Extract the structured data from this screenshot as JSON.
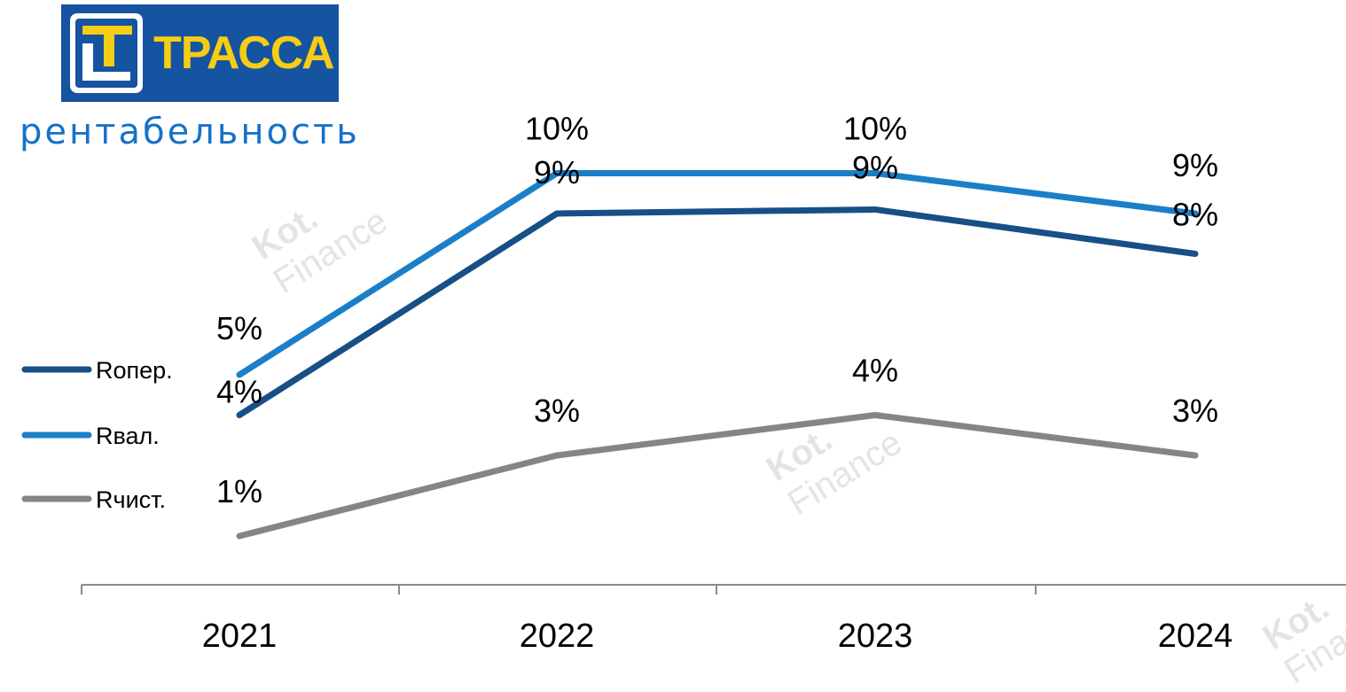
{
  "logo": {
    "brand_text": "ТРАССА",
    "bg_color": "#1653a0",
    "accent_color": "#f5cd14"
  },
  "subtitle": "рентабельность",
  "watermark": {
    "text_line1": "Kot.",
    "text_line2": "Finance"
  },
  "chart_data": {
    "type": "line",
    "categories": [
      "2021",
      "2022",
      "2023",
      "2024"
    ],
    "ylim": [
      0,
      12
    ],
    "grid": false,
    "legend_position": "left",
    "series": [
      {
        "name": "Rопер.",
        "color": "#174f86",
        "values": [
          4,
          9,
          9.1,
          8
        ],
        "labels": [
          "4%",
          "9%",
          "9%",
          "8%"
        ]
      },
      {
        "name": "Rвал.",
        "color": "#1b7fc8",
        "values": [
          5,
          10,
          10,
          9
        ],
        "labels": [
          "5%",
          "10%",
          "10%",
          "9%"
        ]
      },
      {
        "name": "Rчист.",
        "color": "#858585",
        "values": [
          1,
          3,
          4,
          3
        ],
        "labels": [
          "1%",
          "3%",
          "4%",
          "3%"
        ]
      }
    ]
  }
}
